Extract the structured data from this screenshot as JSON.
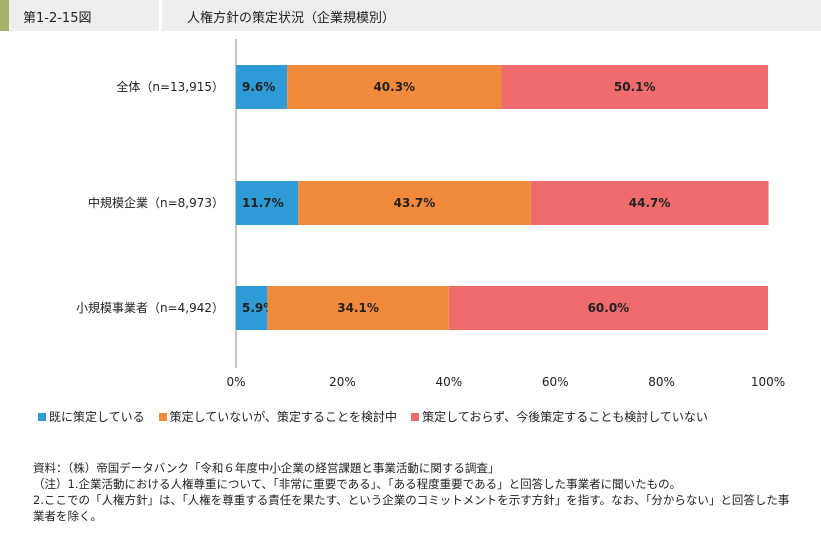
{
  "header": {
    "figure_number": "第1-2-15図",
    "title": "人権方針の策定状況（企業規模別）"
  },
  "colors": {
    "series": [
      "#2e9bd6",
      "#f28a3c",
      "#f06b6b"
    ],
    "axis": "#888888"
  },
  "chart_data": {
    "type": "bar",
    "orientation": "horizontal",
    "stacked": true,
    "categories": [
      "全体（n=13,915）",
      "中規模企業（n=8,973）",
      "小規模事業者（n=4,942）"
    ],
    "series": [
      {
        "name": "既に策定している",
        "values": [
          9.6,
          11.7,
          5.9
        ],
        "labels": [
          "9.6%",
          "11.7%",
          "5.9%"
        ]
      },
      {
        "name": "策定していないが、策定することを検討中",
        "values": [
          40.3,
          43.7,
          34.1
        ],
        "labels": [
          "40.3%",
          "43.7%",
          "34.1%"
        ]
      },
      {
        "name": "策定しておらず、今後策定することも検討していない",
        "values": [
          50.1,
          44.7,
          60.0
        ],
        "labels": [
          "50.1%",
          "44.7%",
          "60.0%"
        ]
      }
    ],
    "xlim": [
      0,
      100
    ],
    "xticks": [
      "0%",
      "20%",
      "40%",
      "60%",
      "80%",
      "100%"
    ],
    "grid": false,
    "legend_position": "bottom"
  },
  "notes": {
    "source": "資料：（株）帝国データバンク「令和６年度中小企業の経営課題と事業活動に関する調査」",
    "note1": "（注）1.企業活動における人権尊重について、「非常に重要である」、「ある程度重要である」と回答した事業者に聞いたもの。",
    "note2": "2.ここでの「人権方針」は、「人権を尊重する責任を果たす、という企業のコミットメントを示す方針」を指す。なお、「分からない」と回答した事業者を除く。"
  }
}
